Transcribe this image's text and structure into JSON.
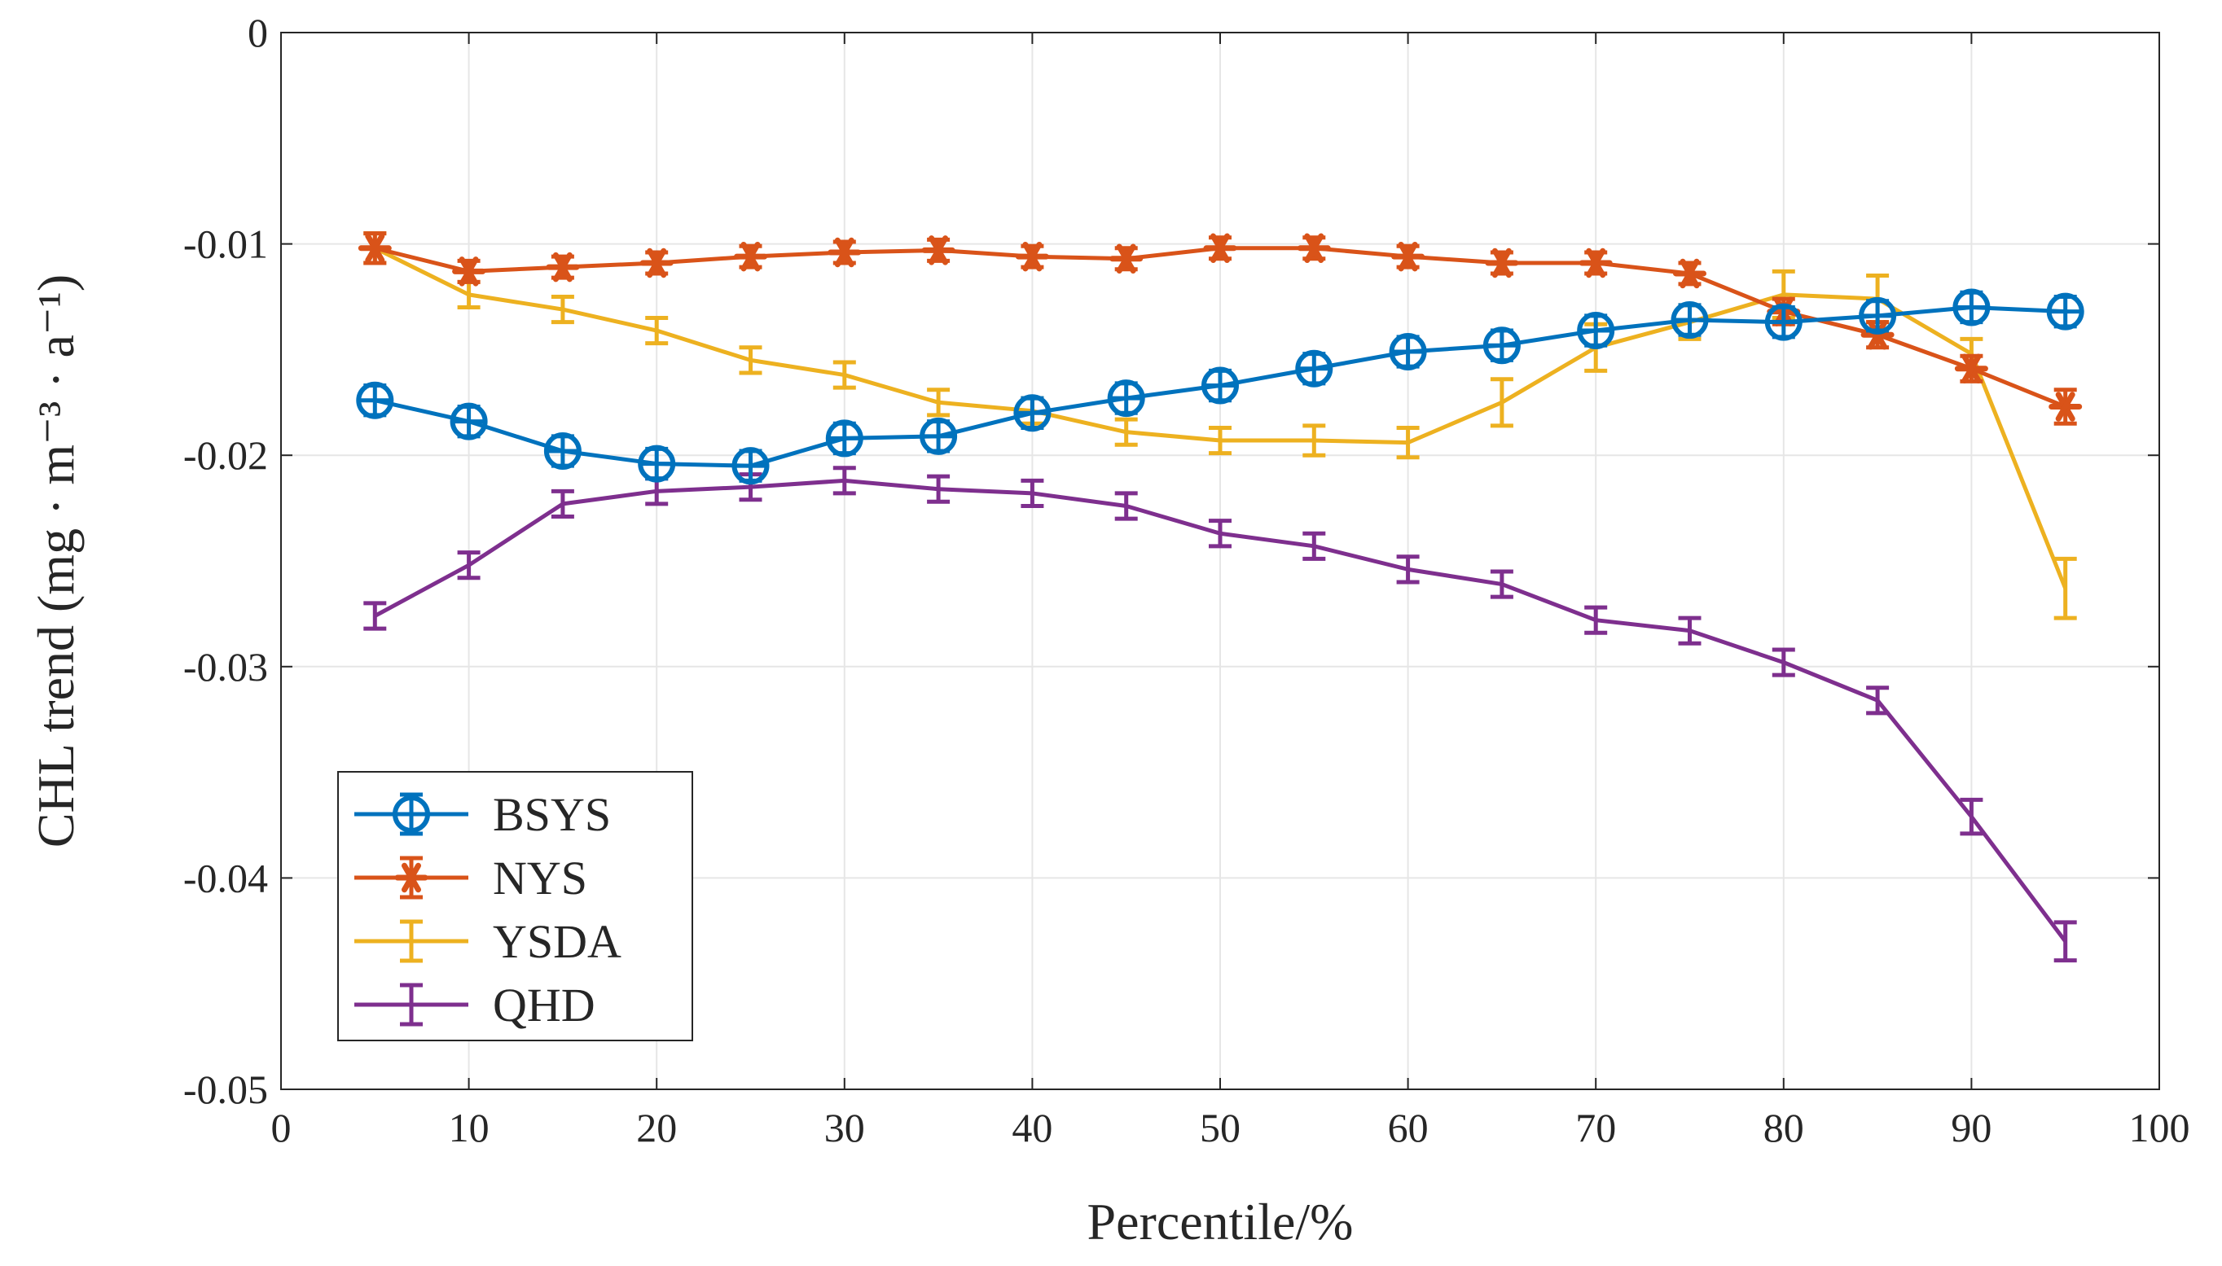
{
  "chart_data": {
    "type": "line",
    "title": "",
    "xlabel": "Percentile/%",
    "ylabel": "CHL trend (mg · m⁻³ · a⁻¹)",
    "xlim": [
      0,
      100
    ],
    "ylim": [
      -0.05,
      0
    ],
    "xticks": [
      0,
      10,
      20,
      30,
      40,
      50,
      60,
      70,
      80,
      90,
      100
    ],
    "xtick_labels": [
      "0",
      "10",
      "20",
      "30",
      "40",
      "50",
      "60",
      "70",
      "80",
      "90",
      "100"
    ],
    "yticks": [
      0,
      -0.01,
      -0.02,
      -0.03,
      -0.04,
      -0.05
    ],
    "ytick_labels": [
      "0",
      "-0.01",
      "-0.02",
      "-0.03",
      "-0.04",
      "-0.05"
    ],
    "grid": true,
    "legend_position": "bottom-left",
    "x": [
      5,
      10,
      15,
      20,
      25,
      30,
      35,
      40,
      45,
      50,
      55,
      60,
      65,
      70,
      75,
      80,
      85,
      90,
      95
    ],
    "series": [
      {
        "name": "BSYS",
        "color": "#0072BD",
        "marker": "circle-plus",
        "values": [
          -0.0174,
          -0.0184,
          -0.0198,
          -0.0204,
          -0.0205,
          -0.0192,
          -0.0191,
          -0.018,
          -0.0173,
          -0.0167,
          -0.0159,
          -0.0151,
          -0.0148,
          -0.0141,
          -0.0136,
          -0.0137,
          -0.0134,
          -0.013,
          -0.0132
        ],
        "errors": [
          0.0007,
          0.0007,
          0.0007,
          0.0007,
          0.0007,
          0.0007,
          0.0007,
          0.0007,
          0.0007,
          0.0007,
          0.0007,
          0.0007,
          0.0007,
          0.0007,
          0.0007,
          0.0007,
          0.0007,
          0.0007,
          0.0007
        ]
      },
      {
        "name": "NYS",
        "color": "#D95319",
        "marker": "asterisk",
        "values": [
          -0.0102,
          -0.0113,
          -0.0111,
          -0.0109,
          -0.0106,
          -0.0104,
          -0.0103,
          -0.0106,
          -0.0107,
          -0.0102,
          -0.0102,
          -0.0106,
          -0.0109,
          -0.0109,
          -0.0114,
          -0.0132,
          -0.0143,
          -0.0159,
          -0.0177
        ],
        "errors": [
          0.0007,
          0.0005,
          0.0005,
          0.0005,
          0.0005,
          0.0005,
          0.0005,
          0.0005,
          0.0005,
          0.0005,
          0.0005,
          0.0005,
          0.0005,
          0.0005,
          0.0005,
          0.0006,
          0.0006,
          0.0006,
          0.0008
        ]
      },
      {
        "name": "YSDA",
        "color": "#EDB120",
        "marker": "none",
        "values": [
          -0.0102,
          -0.0124,
          -0.0131,
          -0.0141,
          -0.0155,
          -0.0162,
          -0.0175,
          -0.0179,
          -0.0189,
          -0.0193,
          -0.0193,
          -0.0194,
          -0.0175,
          -0.0149,
          -0.0137,
          -0.0124,
          -0.0126,
          -0.0152,
          -0.0263
        ],
        "errors": [
          0.0007,
          0.0006,
          0.0006,
          0.0006,
          0.0006,
          0.0006,
          0.0006,
          0.0006,
          0.0006,
          0.0006,
          0.0007,
          0.0007,
          0.0011,
          0.0011,
          0.0008,
          0.0011,
          0.0011,
          0.0007,
          0.0014
        ]
      },
      {
        "name": "QHD",
        "color": "#7E2F8E",
        "marker": "none",
        "values": [
          -0.0276,
          -0.0252,
          -0.0223,
          -0.0217,
          -0.0215,
          -0.0212,
          -0.0216,
          -0.0218,
          -0.0224,
          -0.0237,
          -0.0243,
          -0.0254,
          -0.0261,
          -0.0278,
          -0.0283,
          -0.0298,
          -0.0316,
          -0.0371,
          -0.043
        ],
        "errors": [
          0.0006,
          0.0006,
          0.0006,
          0.0006,
          0.0006,
          0.0006,
          0.0006,
          0.0006,
          0.0006,
          0.0006,
          0.0006,
          0.0006,
          0.0006,
          0.0006,
          0.0006,
          0.0006,
          0.0006,
          0.0008,
          0.0009
        ]
      }
    ]
  }
}
